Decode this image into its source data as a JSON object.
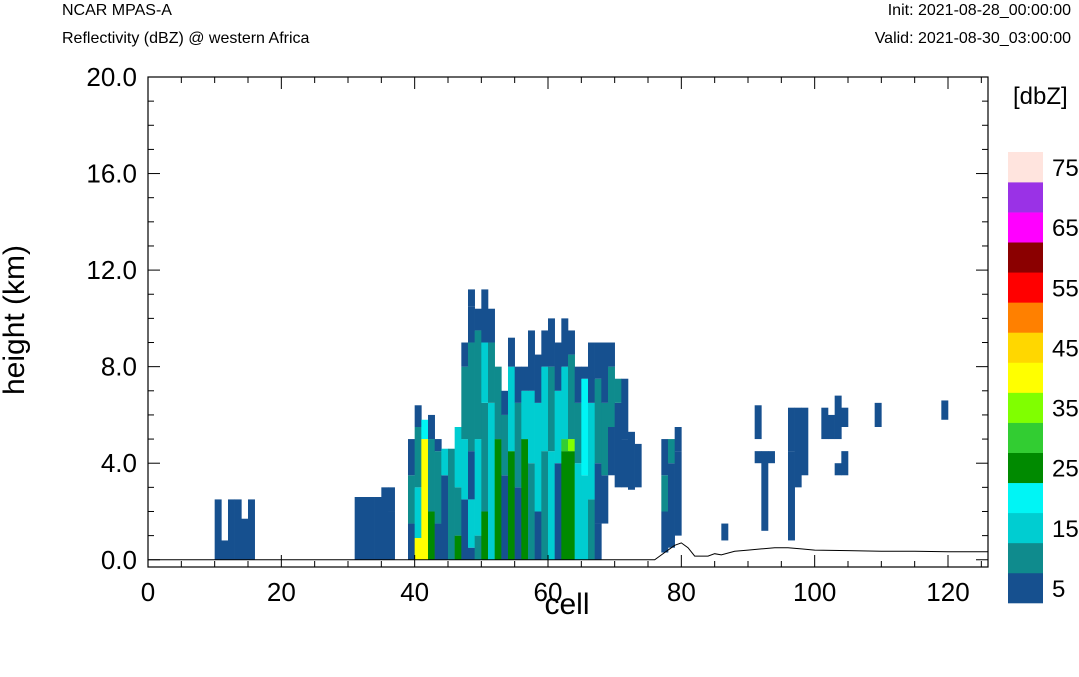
{
  "header": {
    "model": "NCAR MPAS-A",
    "field": "Reflectivity (dBZ) @ western Africa",
    "init": "Init: 2021-08-28_00:00:00",
    "valid": "Valid: 2021-08-30_03:00:00"
  },
  "chart_data": {
    "type": "heatmap",
    "xlabel": "cell",
    "ylabel": "height (km)",
    "xlim": [
      0,
      126
    ],
    "ylim": [
      -0.3,
      20
    ],
    "x_ticks": [
      "0",
      "20",
      "40",
      "60",
      "80",
      "100",
      "120"
    ],
    "y_ticks": [
      "0.0",
      "4.0",
      "8.0",
      "12.0",
      "16.0",
      "20.0"
    ],
    "colorbar": {
      "title": "[dbZ]",
      "levels": [
        5,
        10,
        15,
        20,
        25,
        30,
        35,
        40,
        45,
        50,
        55,
        60,
        65,
        70,
        75
      ],
      "tick_labels": [
        "5",
        "15",
        "25",
        "35",
        "45",
        "55",
        "65",
        "75"
      ],
      "colors": [
        "#16508f",
        "#0f8b8d",
        "#00cdd1",
        "#00f5f5",
        "#008a00",
        "#32cd32",
        "#80ff00",
        "#ffff00",
        "#ffd700",
        "#ff8000",
        "#ff0000",
        "#8b0000",
        "#ff00ff",
        "#9a32e6",
        "#ffe4de"
      ]
    },
    "cell_height_km": 0.5,
    "terrain_km": [
      [
        0,
        0
      ],
      [
        76,
        0
      ],
      [
        77.5,
        0.3
      ],
      [
        79,
        0.6
      ],
      [
        80,
        0.7
      ],
      [
        81,
        0.5
      ],
      [
        82,
        0.15
      ],
      [
        84,
        0.15
      ],
      [
        85,
        0.25
      ],
      [
        86,
        0.2
      ],
      [
        88,
        0.35
      ],
      [
        90,
        0.4
      ],
      [
        92,
        0.45
      ],
      [
        94,
        0.5
      ],
      [
        96,
        0.5
      ],
      [
        98,
        0.45
      ],
      [
        100,
        0.4
      ],
      [
        105,
        0.38
      ],
      [
        110,
        0.35
      ],
      [
        115,
        0.35
      ],
      [
        120,
        0.33
      ],
      [
        126,
        0.33
      ]
    ],
    "columns": [
      {
        "x": 10,
        "top": 2.5,
        "segments": [
          [
            0,
            2.5,
            5
          ]
        ]
      },
      {
        "x": 11,
        "top": 0.8,
        "segments": [
          [
            0,
            0.8,
            1
          ]
        ]
      },
      {
        "x": 12,
        "top": 2.5,
        "segments": [
          [
            0,
            2.5,
            1
          ]
        ]
      },
      {
        "x": 13,
        "top": 2.5,
        "segments": [
          [
            0,
            2.5,
            1
          ]
        ]
      },
      {
        "x": 14,
        "top": 1.7,
        "segments": [
          [
            0,
            1.7,
            1
          ]
        ]
      },
      {
        "x": 15,
        "top": 2.5,
        "segments": [
          [
            0,
            2.5,
            1
          ]
        ]
      },
      {
        "x": 31,
        "top": 2.6,
        "segments": [
          [
            0,
            2.6,
            5
          ]
        ]
      },
      {
        "x": 32,
        "top": 2.6,
        "segments": [
          [
            0,
            2.6,
            5
          ]
        ]
      },
      {
        "x": 33,
        "top": 2.6,
        "segments": [
          [
            0,
            2.6,
            5
          ]
        ]
      },
      {
        "x": 34,
        "top": 2.6,
        "segments": [
          [
            0,
            2.6,
            5
          ]
        ]
      },
      {
        "x": 35,
        "top": 3.0,
        "segments": [
          [
            0,
            2.6,
            5
          ],
          [
            2.6,
            3.0,
            1
          ]
        ]
      },
      {
        "x": 36,
        "top": 3.0,
        "segments": [
          [
            0,
            2.0,
            1
          ],
          [
            2.0,
            3.0,
            5
          ]
        ]
      },
      {
        "x": 39,
        "top": 5.0,
        "segments": [
          [
            0,
            1.5,
            5
          ],
          [
            1.5,
            3.5,
            10
          ],
          [
            3.5,
            5.0,
            5
          ]
        ]
      },
      {
        "x": 40,
        "top": 6.4,
        "segments": [
          [
            0,
            0.9,
            40
          ],
          [
            0.9,
            3.0,
            15
          ],
          [
            3.0,
            5.5,
            10
          ],
          [
            5.5,
            6.4,
            1
          ]
        ]
      },
      {
        "x": 41,
        "top": 5.8,
        "segments": [
          [
            0,
            5.0,
            40
          ],
          [
            5.0,
            5.8,
            20
          ]
        ]
      },
      {
        "x": 42,
        "top": 6.0,
        "segments": [
          [
            0,
            2.0,
            25
          ],
          [
            2.0,
            5.0,
            10
          ],
          [
            5.0,
            6.0,
            1
          ]
        ]
      },
      {
        "x": 43,
        "top": 5.0,
        "segments": [
          [
            0,
            1.5,
            5
          ],
          [
            1.5,
            4.5,
            10
          ],
          [
            4.5,
            5.0,
            5
          ]
        ]
      },
      {
        "x": 44,
        "top": 4.6,
        "segments": [
          [
            0,
            3.5,
            5
          ],
          [
            3.5,
            4.6,
            15
          ]
        ]
      },
      {
        "x": 45,
        "top": 4.6,
        "segments": [
          [
            0,
            4.6,
            10
          ]
        ]
      },
      {
        "x": 46,
        "top": 5.5,
        "segments": [
          [
            0,
            1.0,
            25
          ],
          [
            1.0,
            3.0,
            10
          ],
          [
            3.0,
            5.5,
            15
          ]
        ]
      },
      {
        "x": 47,
        "top": 9.0,
        "segments": [
          [
            0,
            2.5,
            5
          ],
          [
            2.5,
            5.0,
            15
          ],
          [
            5.0,
            8.0,
            10
          ],
          [
            8.0,
            9.0,
            1
          ]
        ]
      },
      {
        "x": 48,
        "top": 11.2,
        "segments": [
          [
            0,
            0.5,
            5
          ],
          [
            0.5,
            2.5,
            15
          ],
          [
            2.5,
            4.5,
            5
          ],
          [
            4.5,
            9.0,
            10
          ],
          [
            9.0,
            10.5,
            5
          ],
          [
            10.5,
            11.2,
            1
          ]
        ]
      },
      {
        "x": 49,
        "top": 10.4,
        "segments": [
          [
            0,
            1.0,
            10
          ],
          [
            1.0,
            5.0,
            15
          ],
          [
            5.0,
            9.5,
            10
          ],
          [
            9.5,
            10.4,
            1
          ]
        ]
      },
      {
        "x": 50,
        "top": 11.2,
        "segments": [
          [
            0,
            2.0,
            25
          ],
          [
            2.0,
            6.5,
            10
          ],
          [
            6.5,
            9.0,
            15
          ],
          [
            9.0,
            11.2,
            1
          ]
        ]
      },
      {
        "x": 51,
        "top": 10.4,
        "segments": [
          [
            0,
            6.5,
            15
          ],
          [
            6.5,
            9.0,
            10
          ],
          [
            9.0,
            10.4,
            5
          ]
        ]
      },
      {
        "x": 52,
        "top": 8.0,
        "segments": [
          [
            0,
            5.0,
            25
          ],
          [
            5.0,
            8.0,
            10
          ]
        ]
      },
      {
        "x": 53,
        "top": 7.0,
        "segments": [
          [
            0,
            3.5,
            5
          ],
          [
            3.5,
            6.0,
            10
          ],
          [
            6.0,
            7.0,
            1
          ]
        ]
      },
      {
        "x": 54,
        "top": 9.2,
        "segments": [
          [
            0,
            4.5,
            25
          ],
          [
            4.5,
            8.0,
            15
          ],
          [
            8.0,
            9.2,
            1
          ]
        ]
      },
      {
        "x": 55,
        "top": 8.0,
        "segments": [
          [
            0,
            3.0,
            5
          ],
          [
            3.0,
            6.5,
            10
          ],
          [
            6.5,
            8.0,
            5
          ]
        ]
      },
      {
        "x": 56,
        "top": 8.0,
        "segments": [
          [
            0,
            5.0,
            25
          ],
          [
            5.0,
            7.0,
            15
          ],
          [
            7.0,
            8.0,
            1
          ]
        ]
      },
      {
        "x": 57,
        "top": 9.5,
        "segments": [
          [
            0,
            4.0,
            10
          ],
          [
            4.0,
            7.0,
            15
          ],
          [
            7.0,
            9.5,
            1
          ]
        ]
      },
      {
        "x": 58,
        "top": 8.5,
        "segments": [
          [
            0,
            2.0,
            5
          ],
          [
            2.0,
            6.5,
            15
          ],
          [
            6.5,
            8.5,
            5
          ]
        ]
      },
      {
        "x": 59,
        "top": 9.5,
        "segments": [
          [
            0,
            4.5,
            10
          ],
          [
            4.5,
            8.0,
            15
          ],
          [
            8.0,
            9.5,
            1
          ]
        ]
      },
      {
        "x": 60,
        "top": 10.0,
        "segments": [
          [
            0,
            4.5,
            15
          ],
          [
            4.5,
            8.0,
            10
          ],
          [
            8.0,
            10.0,
            1
          ]
        ]
      },
      {
        "x": 61,
        "top": 9.0,
        "segments": [
          [
            0,
            4.0,
            5
          ],
          [
            4.0,
            7.0,
            15
          ],
          [
            7.0,
            9.0,
            5
          ]
        ]
      },
      {
        "x": 62,
        "top": 10.0,
        "segments": [
          [
            0,
            4.5,
            25
          ],
          [
            4.5,
            5.0,
            30
          ],
          [
            5.0,
            8.0,
            15
          ],
          [
            8.0,
            10.0,
            1
          ]
        ]
      },
      {
        "x": 63,
        "top": 9.5,
        "segments": [
          [
            0,
            4.5,
            25
          ],
          [
            4.5,
            5.0,
            35
          ],
          [
            5.0,
            8.5,
            10
          ],
          [
            8.5,
            9.5,
            5
          ]
        ]
      },
      {
        "x": 64,
        "top": 8.0,
        "segments": [
          [
            0,
            4.0,
            15
          ],
          [
            4.0,
            6.5,
            10
          ],
          [
            6.5,
            8.0,
            5
          ]
        ]
      },
      {
        "x": 65,
        "top": 8.0,
        "segments": [
          [
            0,
            3.5,
            15
          ],
          [
            3.5,
            7.5,
            20
          ],
          [
            7.5,
            8.0,
            5
          ]
        ]
      },
      {
        "x": 66,
        "top": 9.0,
        "segments": [
          [
            0,
            2.5,
            10
          ],
          [
            2.5,
            6.5,
            15
          ],
          [
            6.5,
            9.0,
            1
          ]
        ]
      },
      {
        "x": 67,
        "top": 9.0,
        "segments": [
          [
            0,
            1.5,
            1
          ],
          [
            1.5,
            4.0,
            5
          ],
          [
            4.0,
            7.5,
            10
          ],
          [
            7.5,
            9.0,
            1
          ]
        ]
      },
      {
        "x": 68,
        "top": 9.0,
        "segments": [
          [
            1.5,
            3.5,
            1
          ],
          [
            3.5,
            6.5,
            10
          ],
          [
            6.5,
            9.0,
            5
          ]
        ]
      },
      {
        "x": 69,
        "top": 9.0,
        "segments": [
          [
            3.5,
            5.5,
            1
          ],
          [
            5.5,
            8.0,
            10
          ],
          [
            8.0,
            9.0,
            1
          ]
        ]
      },
      {
        "x": 70,
        "top": 7.5,
        "segments": [
          [
            3.0,
            6.5,
            1
          ],
          [
            6.5,
            7.5,
            10
          ]
        ]
      },
      {
        "x": 71,
        "top": 7.5,
        "segments": [
          [
            3.0,
            5.0,
            1
          ],
          [
            5.0,
            7.5,
            1
          ]
        ]
      },
      {
        "x": 72,
        "top": 5.3,
        "segments": [
          [
            2.9,
            5.3,
            1
          ]
        ]
      },
      {
        "x": 73,
        "top": 4.8,
        "segments": [
          [
            3.0,
            4.8,
            1
          ]
        ]
      },
      {
        "x": 77,
        "top": 5.0,
        "segments": [
          [
            0.3,
            2.0,
            5
          ],
          [
            2.0,
            3.5,
            10
          ],
          [
            3.5,
            5.0,
            5
          ]
        ]
      },
      {
        "x": 78,
        "top": 5.0,
        "segments": [
          [
            0.5,
            4.0,
            5
          ],
          [
            4.0,
            5.0,
            10
          ]
        ]
      },
      {
        "x": 79,
        "top": 5.5,
        "segments": [
          [
            1.0,
            4.5,
            5
          ],
          [
            4.5,
            5.5,
            1
          ]
        ]
      },
      {
        "x": 86,
        "top": 1.5,
        "segments": [
          [
            0.8,
            1.5,
            1
          ]
        ]
      },
      {
        "x": 91,
        "top": 6.4,
        "segments": [
          [
            4.0,
            4.5,
            1
          ],
          [
            5.0,
            6.4,
            5
          ]
        ]
      },
      {
        "x": 92,
        "top": 4.5,
        "segments": [
          [
            1.2,
            4.5,
            1
          ]
        ]
      },
      {
        "x": 93,
        "top": 4.5,
        "segments": [
          [
            4.0,
            4.5,
            5
          ]
        ]
      },
      {
        "x": 96,
        "top": 6.3,
        "segments": [
          [
            0.8,
            4.5,
            1
          ],
          [
            4.5,
            6.3,
            5
          ]
        ]
      },
      {
        "x": 97,
        "top": 6.3,
        "segments": [
          [
            3.0,
            6.3,
            5
          ]
        ]
      },
      {
        "x": 98,
        "top": 6.3,
        "segments": [
          [
            3.5,
            6.3,
            1
          ]
        ]
      },
      {
        "x": 101,
        "top": 6.3,
        "segments": [
          [
            5.0,
            6.3,
            1
          ]
        ]
      },
      {
        "x": 102,
        "top": 6.3,
        "segments": [
          [
            5.0,
            6.0,
            1
          ]
        ]
      },
      {
        "x": 103,
        "top": 6.8,
        "segments": [
          [
            3.5,
            4.0,
            1
          ],
          [
            5.0,
            6.8,
            1
          ]
        ]
      },
      {
        "x": 104,
        "top": 6.3,
        "segments": [
          [
            3.5,
            4.5,
            5
          ],
          [
            5.5,
            6.3,
            1
          ]
        ]
      },
      {
        "x": 109,
        "top": 6.5,
        "segments": [
          [
            5.5,
            6.5,
            1
          ]
        ]
      },
      {
        "x": 119,
        "top": 6.6,
        "segments": [
          [
            5.8,
            6.6,
            1
          ]
        ]
      }
    ]
  }
}
